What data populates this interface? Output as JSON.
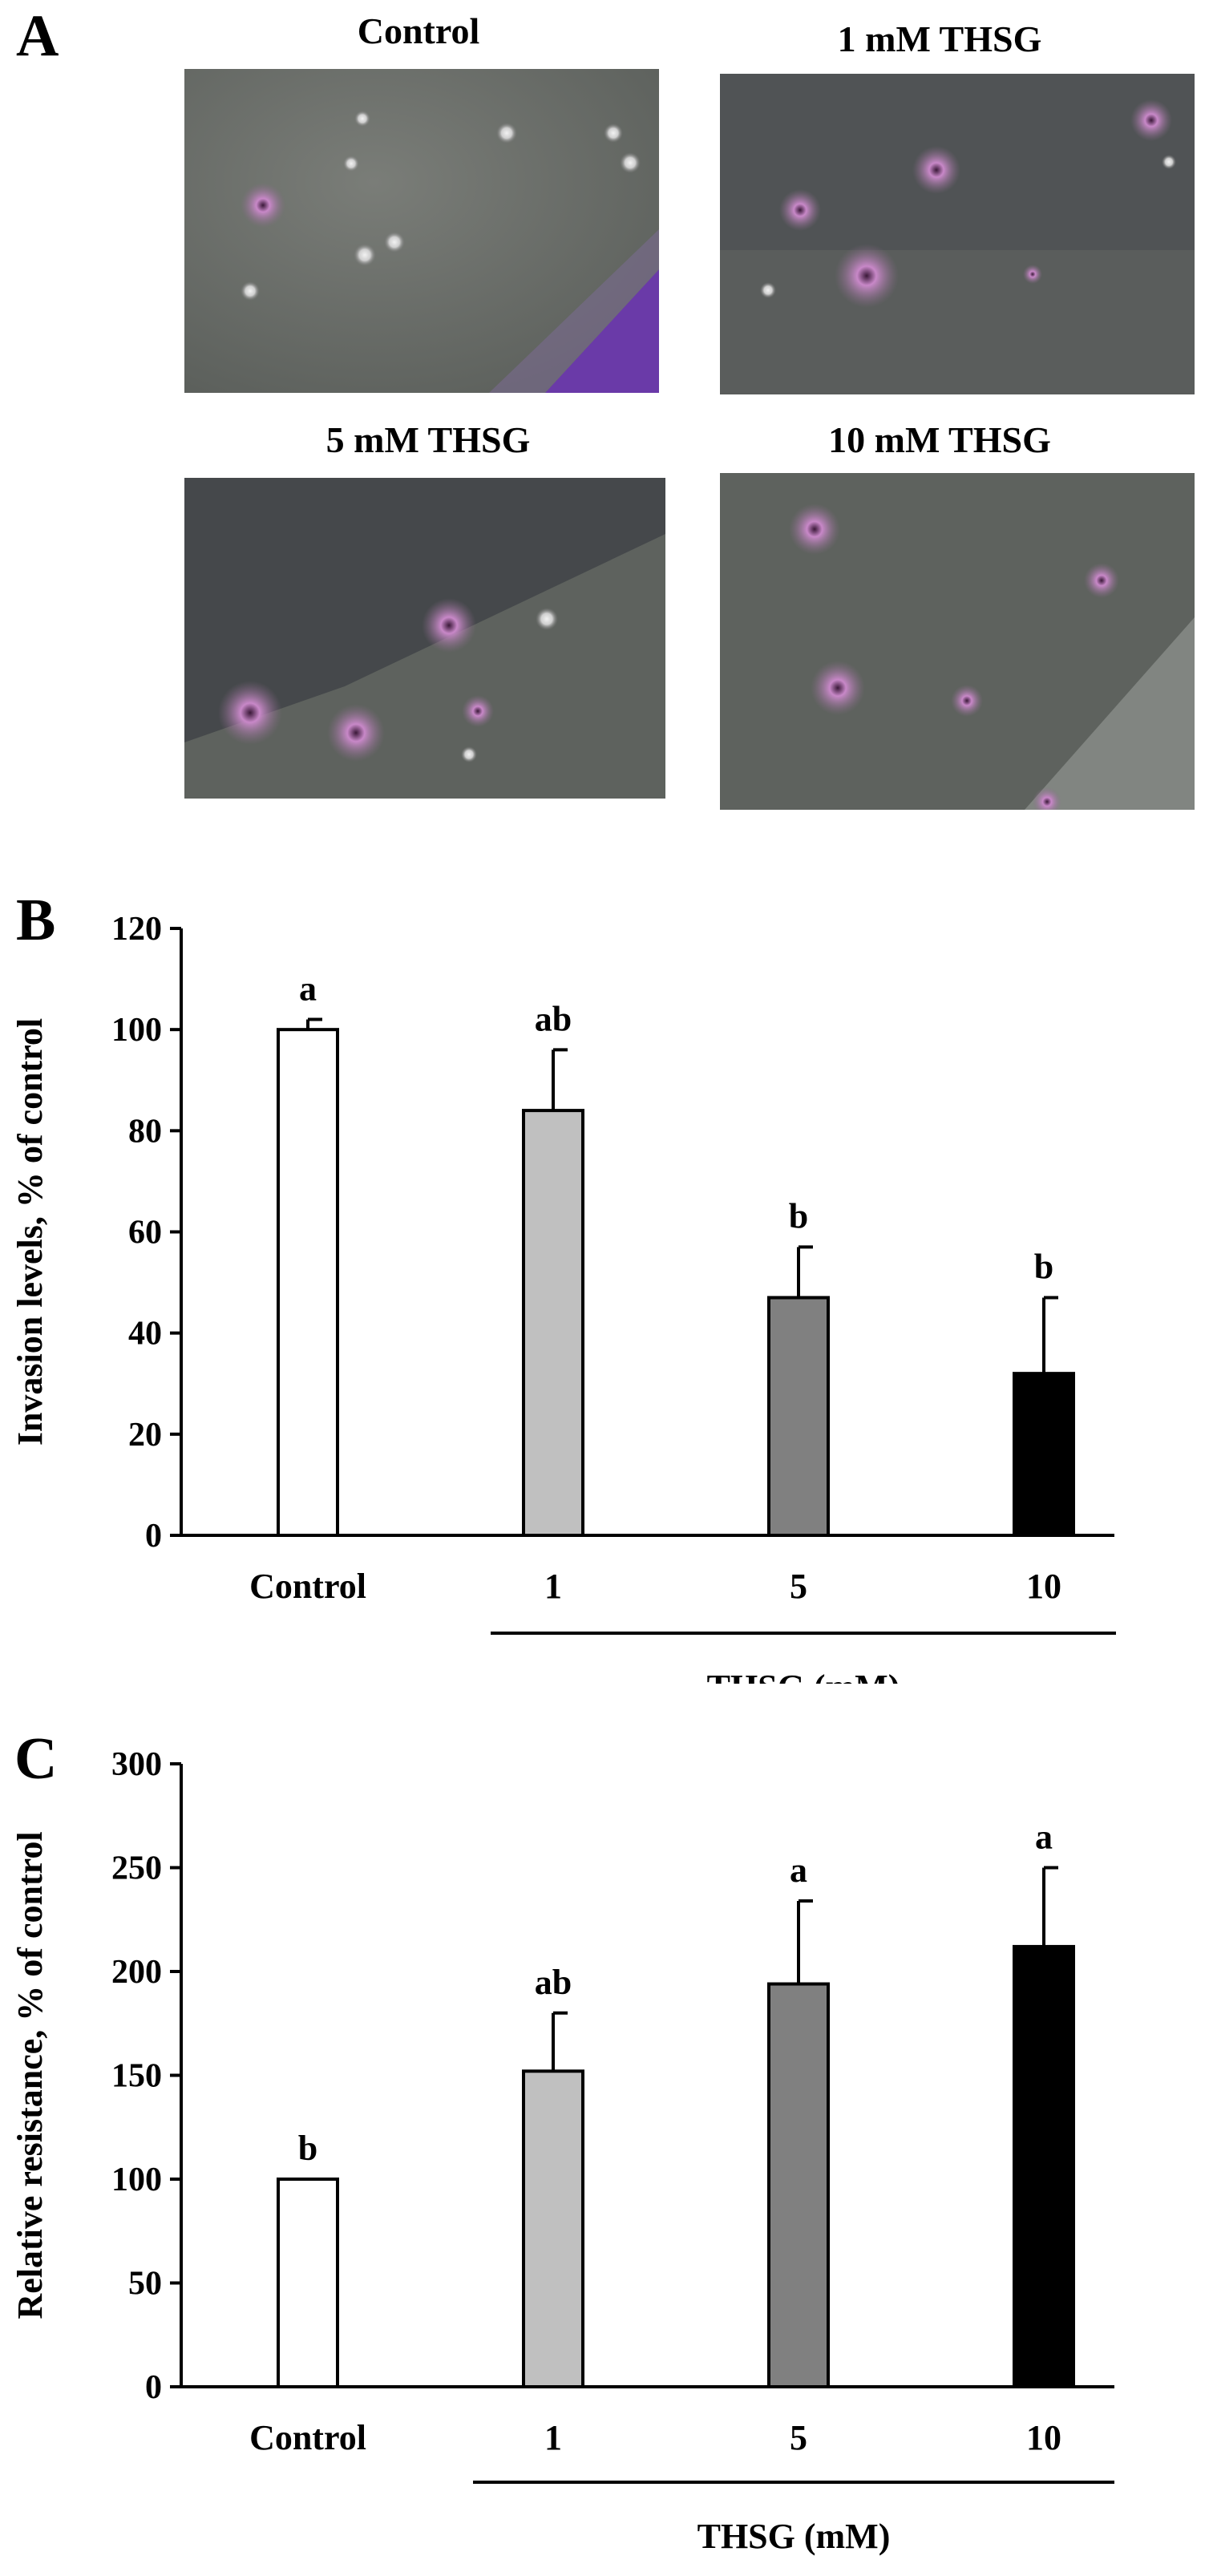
{
  "panel_a": {
    "letter": "A",
    "photos": [
      {
        "title": "Control"
      },
      {
        "title": "1 mM THSG"
      },
      {
        "title": "5 mM THSG"
      },
      {
        "title": "10 mM THSG"
      }
    ]
  },
  "chart_data": [
    {
      "panel_letter": "B",
      "type": "bar",
      "categories": [
        "Control",
        "1",
        "5",
        "10"
      ],
      "values": [
        100,
        84,
        47,
        32
      ],
      "errors": [
        2,
        12,
        10,
        15
      ],
      "significance": [
        "a",
        "ab",
        "b",
        "b"
      ],
      "bar_colors": [
        "#ffffff",
        "#c0c0c0",
        "#808080",
        "#000000"
      ],
      "ylabel": "Invasion levels, % of control",
      "xgroup_label": "THSG (mM)",
      "ylim": [
        0,
        120
      ],
      "yticks": [
        0,
        20,
        40,
        60,
        80,
        100,
        120
      ],
      "grid": false
    },
    {
      "panel_letter": "C",
      "type": "bar",
      "categories": [
        "Control",
        "1",
        "5",
        "10"
      ],
      "values": [
        100,
        152,
        194,
        212
      ],
      "errors": [
        0,
        28,
        40,
        38
      ],
      "significance": [
        "b",
        "ab",
        "a",
        "a"
      ],
      "bar_colors": [
        "#ffffff",
        "#c0c0c0",
        "#808080",
        "#000000"
      ],
      "ylabel": "Relative resistance, % of control",
      "xgroup_label": "THSG (mM)",
      "ylim": [
        0,
        300
      ],
      "yticks": [
        0,
        50,
        100,
        150,
        200,
        250,
        300
      ],
      "grid": false
    }
  ]
}
